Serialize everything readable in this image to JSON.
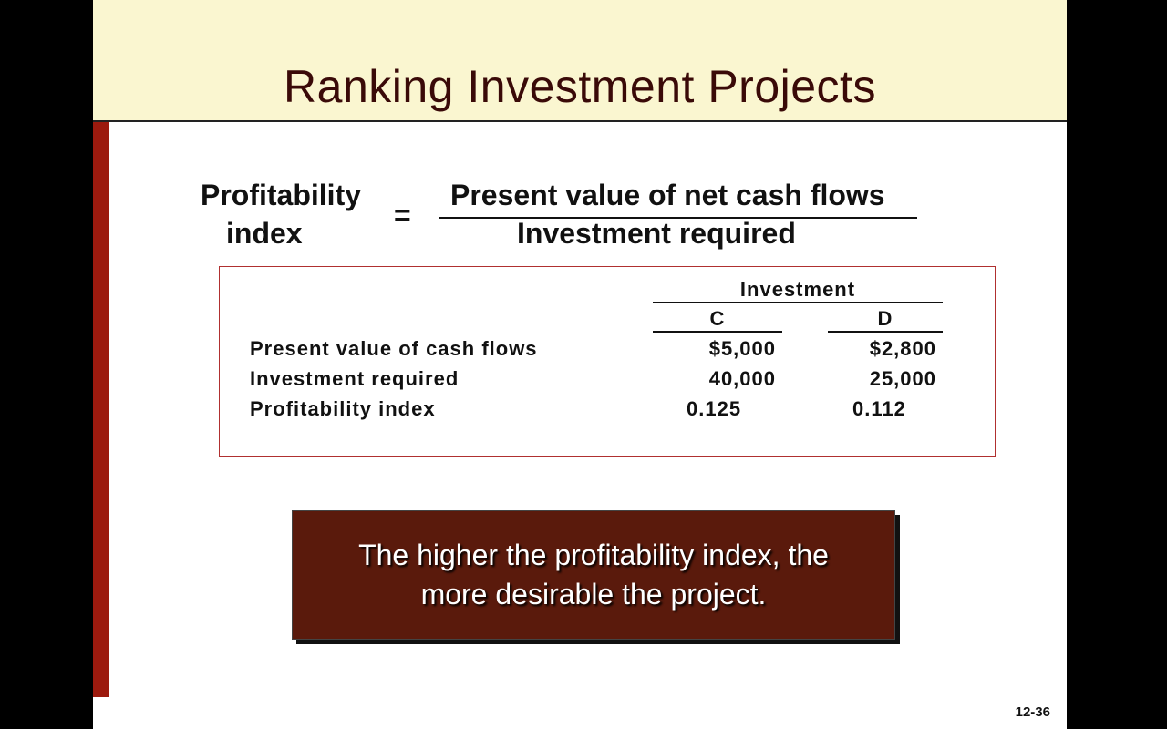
{
  "title": "Ranking Investment Projects",
  "formula": {
    "lhs_line1": "Profitability",
    "lhs_line2": "index",
    "equals": "=",
    "numerator": "Present value of net cash flows",
    "denominator": "Investment required"
  },
  "table": {
    "group_header": "Investment",
    "columns": [
      "C",
      "D"
    ],
    "rows": [
      {
        "label": "Present value of cash flows",
        "values": [
          "$5,000",
          "$2,800"
        ]
      },
      {
        "label": "Investment required",
        "values": [
          "40,000",
          "25,000"
        ]
      },
      {
        "label": "Profitability index",
        "values": [
          "0.125",
          "0.112"
        ]
      }
    ]
  },
  "callout": {
    "line1": "The higher the profitability index, the",
    "line2": "more desirable the project."
  },
  "page_number": "12-36",
  "colors": {
    "title_band": "#faf6d0",
    "title_text": "#3a0a08",
    "side_bar": "#9c1a0e",
    "callout_bg": "#5a1a0c"
  }
}
